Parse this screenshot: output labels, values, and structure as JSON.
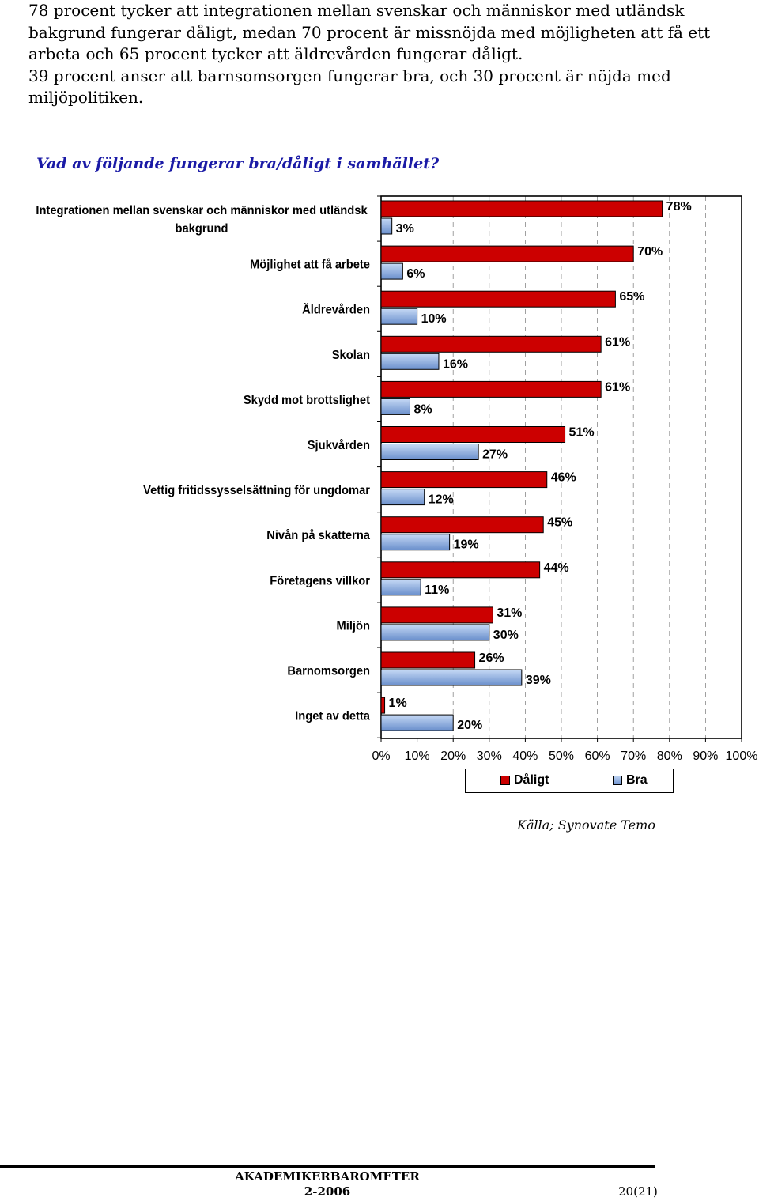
{
  "intro": {
    "lines": [
      "78 procent tycker att integrationen mellan svenskar och människor med utländsk",
      "bakgrund fungerar dåligt, medan 70 procent är missnöjda med möjligheten att få ett",
      "arbeta och 65 procent tycker att äldrevården fungerar dåligt.",
      "39 procent anser att barnsomsorgen fungerar bra, och 30 procent är nöjda med",
      "miljöpolitiken."
    ]
  },
  "question": "Vad av följande fungerar bra/dåligt i samhället?",
  "chart_data": {
    "type": "bar",
    "orientation": "horizontal",
    "categories": [
      [
        "Integrationen mellan svenskar och människor med utländsk",
        "bakgrund"
      ],
      [
        "Möjlighet att få arbete"
      ],
      [
        "Äldrevården"
      ],
      [
        "Skolan"
      ],
      [
        "Skydd mot brottslighet"
      ],
      [
        "Sjukvården"
      ],
      [
        "Vettig fritidssysselsättning för ungdomar"
      ],
      [
        "Nivån på skatterna"
      ],
      [
        "Företagens villkor"
      ],
      [
        "Miljön"
      ],
      [
        "Barnomsorgen"
      ],
      [
        "Inget av detta"
      ]
    ],
    "series": [
      {
        "name": "Dåligt",
        "color": "#cc0000",
        "values": [
          78,
          70,
          65,
          61,
          61,
          51,
          46,
          45,
          44,
          31,
          26,
          1
        ]
      },
      {
        "name": "Bra",
        "color": "#8aaade",
        "values": [
          3,
          6,
          10,
          16,
          8,
          27,
          12,
          19,
          11,
          30,
          39,
          20
        ]
      }
    ],
    "value_suffix": "%",
    "xlim": [
      0,
      100
    ],
    "xticks": [
      "0%",
      "10%",
      "20%",
      "30%",
      "40%",
      "50%",
      "60%",
      "70%",
      "80%",
      "90%",
      "100%"
    ],
    "grid": "dashed vertical",
    "legend_position": "bottom"
  },
  "legend": {
    "bad_label": "Dåligt",
    "good_label": "Bra"
  },
  "source": "Källa; Synovate Temo",
  "footer": {
    "title": "AKADEMIKERBAROMETER",
    "issue": "2-2006",
    "page": "20(21)"
  }
}
